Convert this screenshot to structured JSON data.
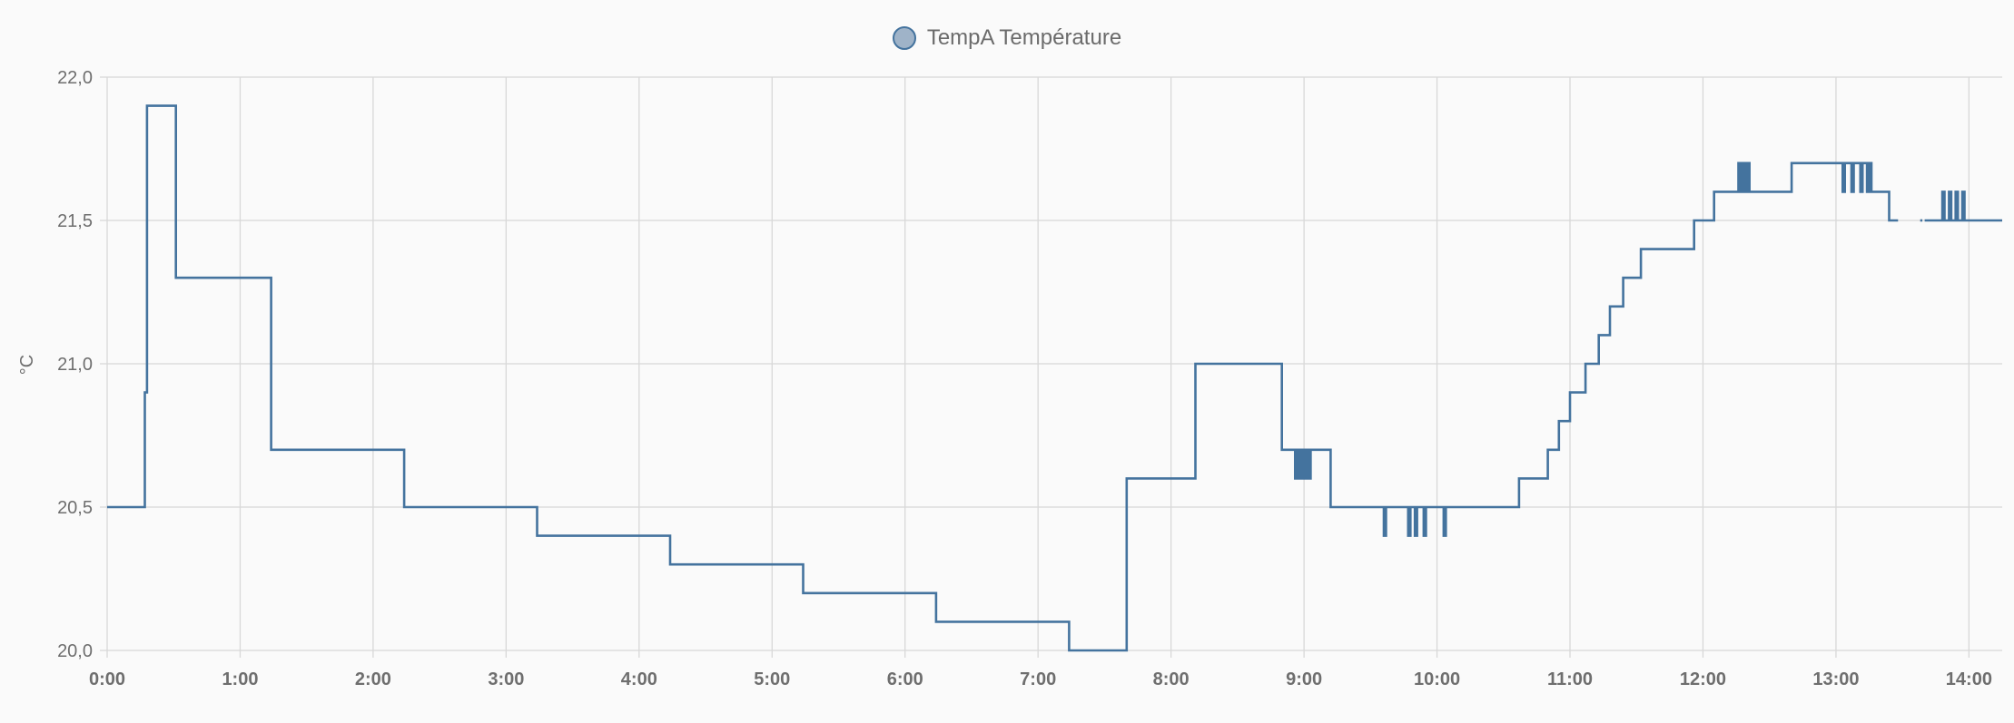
{
  "legend": {
    "label": "TempA Température",
    "color": "#44739e",
    "fill": "#9fb3c8"
  },
  "chart_data": {
    "type": "line",
    "interpolation": "step",
    "grid": true,
    "legend_position": "top-center",
    "ylabel": "°C",
    "ylim": [
      20.0,
      22.0
    ],
    "y_ticks": [
      "20,0",
      "20,5",
      "21,0",
      "21,5",
      "22,0"
    ],
    "y_tick_values": [
      20.0,
      20.5,
      21.0,
      21.5,
      22.0
    ],
    "xlim_hours": [
      0,
      14.25
    ],
    "x_ticks": [
      "0:00",
      "1:00",
      "2:00",
      "3:00",
      "4:00",
      "5:00",
      "6:00",
      "7:00",
      "8:00",
      "9:00",
      "10:00",
      "11:00",
      "12:00",
      "13:00",
      "14:00"
    ],
    "series": [
      {
        "name": "TempA Température",
        "color": "#44739e",
        "points": [
          [
            "0:00",
            20.5
          ],
          [
            "0:17",
            20.9
          ],
          [
            "0:18",
            21.9
          ],
          [
            "0:31",
            21.3
          ],
          [
            "1:14",
            20.7
          ],
          [
            "2:14",
            20.5
          ],
          [
            "3:14",
            20.4
          ],
          [
            "4:14",
            20.3
          ],
          [
            "5:14",
            20.2
          ],
          [
            "6:14",
            20.1
          ],
          [
            "7:14",
            20.0
          ],
          [
            "7:40",
            20.6
          ],
          [
            "8:11",
            21.0
          ],
          [
            "8:50",
            20.7
          ],
          [
            "8:56",
            20.6
          ],
          [
            "8:57",
            20.7
          ],
          [
            "8:58",
            20.6
          ],
          [
            "8:59",
            20.7
          ],
          [
            "9:00",
            20.6
          ],
          [
            "9:01",
            20.7
          ],
          [
            "9:02",
            20.6
          ],
          [
            "9:03",
            20.7
          ],
          [
            "9:12",
            20.5
          ],
          [
            "9:36",
            20.4
          ],
          [
            "9:37",
            20.5
          ],
          [
            "9:47",
            20.4
          ],
          [
            "9:48",
            20.5
          ],
          [
            "9:50",
            20.4
          ],
          [
            "9:51",
            20.5
          ],
          [
            "9:54",
            20.4
          ],
          [
            "9:55",
            20.5
          ],
          [
            "10:03",
            20.4
          ],
          [
            "10:04",
            20.5
          ],
          [
            "10:37",
            20.6
          ],
          [
            "10:50",
            20.7
          ],
          [
            "10:55",
            20.8
          ],
          [
            "11:00",
            20.9
          ],
          [
            "11:07",
            21.0
          ],
          [
            "11:13",
            21.1
          ],
          [
            "11:18",
            21.2
          ],
          [
            "11:24",
            21.3
          ],
          [
            "11:32",
            21.4
          ],
          [
            "11:56",
            21.5
          ],
          [
            "12:05",
            21.6
          ],
          [
            "12:16",
            21.7
          ],
          [
            "12:17",
            21.6
          ],
          [
            "12:18",
            21.7
          ],
          [
            "12:19",
            21.6
          ],
          [
            "12:20",
            21.7
          ],
          [
            "12:21",
            21.6
          ],
          [
            "12:40",
            21.7
          ],
          [
            "13:03",
            21.6
          ],
          [
            "13:04",
            21.7
          ],
          [
            "13:07",
            21.6
          ],
          [
            "13:08",
            21.7
          ],
          [
            "13:11",
            21.6
          ],
          [
            "13:12",
            21.7
          ],
          [
            "13:14",
            21.6
          ],
          [
            "13:15",
            21.7
          ],
          [
            "13:16",
            21.6
          ],
          [
            "13:24",
            21.5
          ],
          [
            "13:28",
            null
          ],
          [
            "13:38",
            21.5
          ],
          [
            "13:39",
            null
          ],
          [
            "13:40",
            21.5
          ],
          [
            "13:48",
            21.6
          ],
          [
            "13:49",
            21.5
          ],
          [
            "13:51",
            21.6
          ],
          [
            "13:52",
            21.5
          ],
          [
            "13:54",
            21.6
          ],
          [
            "13:55",
            21.5
          ],
          [
            "13:57",
            21.6
          ],
          [
            "13:58",
            21.5
          ],
          [
            "14:15",
            21.5
          ]
        ]
      }
    ]
  }
}
